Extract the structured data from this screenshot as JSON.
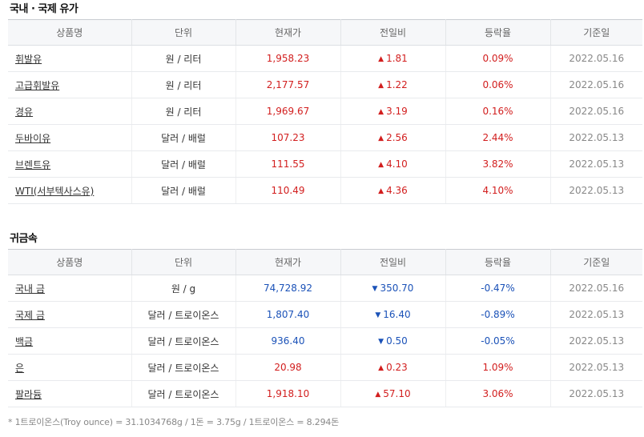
{
  "sections": {
    "oil_title": "국내 · 국제 유가",
    "metal_title": "귀금속"
  },
  "headers": [
    "상품명",
    "단위",
    "현재가",
    "전일비",
    "등락율",
    "기준일"
  ],
  "oil_rows": [
    {
      "name": "휘발유",
      "unit": "원 / 리터",
      "price": "1,958.23",
      "dir": "up",
      "change": "1.81",
      "rate": "0.09%",
      "date": "2022.05.16"
    },
    {
      "name": "고급휘발유",
      "unit": "원 / 리터",
      "price": "2,177.57",
      "dir": "up",
      "change": "1.22",
      "rate": "0.06%",
      "date": "2022.05.16"
    },
    {
      "name": "경유",
      "unit": "원 / 리터",
      "price": "1,969.67",
      "dir": "up",
      "change": "3.19",
      "rate": "0.16%",
      "date": "2022.05.16"
    },
    {
      "name": "두바이유",
      "unit": "달러 / 배럴",
      "price": "107.23",
      "dir": "up",
      "change": "2.56",
      "rate": "2.44%",
      "date": "2022.05.13"
    },
    {
      "name": "브렌트유",
      "unit": "달러 / 배럴",
      "price": "111.55",
      "dir": "up",
      "change": "4.10",
      "rate": "3.82%",
      "date": "2022.05.13"
    },
    {
      "name": "WTI(서부텍사스유)",
      "unit": "달러 / 배럴",
      "price": "110.49",
      "dir": "up",
      "change": "4.36",
      "rate": "4.10%",
      "date": "2022.05.13"
    }
  ],
  "metal_rows": [
    {
      "name": "국내 금",
      "unit": "원 / g",
      "price": "74,728.92",
      "dir": "down",
      "change": "350.70",
      "rate": "-0.47%",
      "date": "2022.05.16"
    },
    {
      "name": "국제 금",
      "unit": "달러 / 트로이온스",
      "price": "1,807.40",
      "dir": "down",
      "change": "16.40",
      "rate": "-0.89%",
      "date": "2022.05.13"
    },
    {
      "name": "백금",
      "unit": "달러 / 트로이온스",
      "price": "936.40",
      "dir": "down",
      "change": "0.50",
      "rate": "-0.05%",
      "date": "2022.05.13"
    },
    {
      "name": "은",
      "unit": "달러 / 트로이온스",
      "price": "20.98",
      "dir": "up",
      "change": "0.23",
      "rate": "1.09%",
      "date": "2022.05.13"
    },
    {
      "name": "팔라듐",
      "unit": "달러 / 트로이온스",
      "price": "1,918.10",
      "dir": "up",
      "change": "57.10",
      "rate": "3.06%",
      "date": "2022.05.13"
    }
  ],
  "symbols": {
    "up": "▲",
    "down": "▼"
  },
  "colors": {
    "up": "#d21e1e",
    "down": "#1b52b8",
    "up_icon": "triangle-up-icon",
    "down_icon": "triangle-down-icon"
  },
  "footnote": "* 1트로이온스(Troy ounce) = 31.1034768g / 1돈 = 3.75g / 1트로이온스 = 8.294돈"
}
